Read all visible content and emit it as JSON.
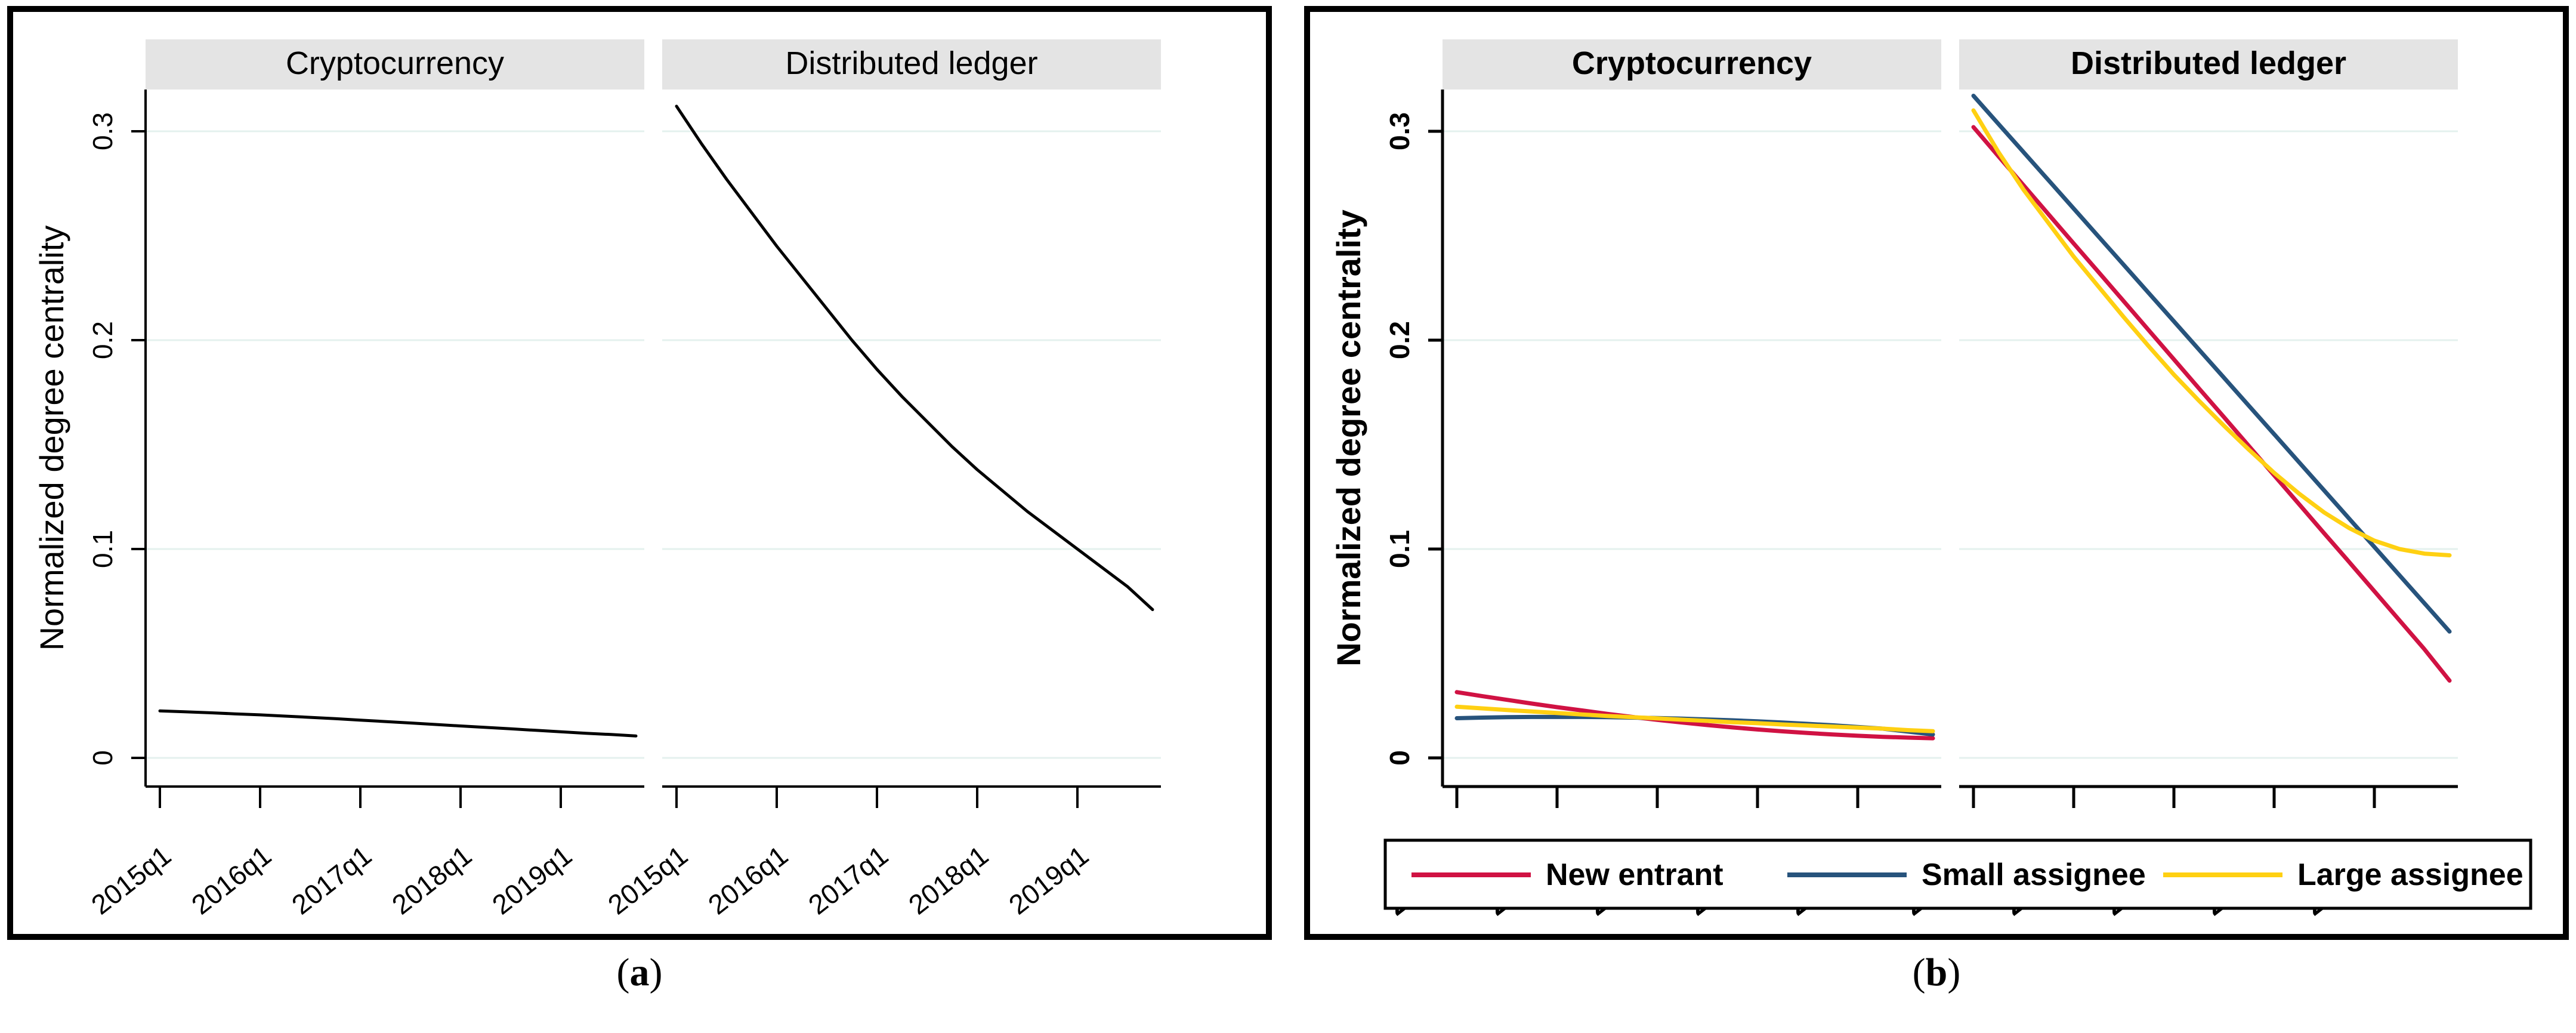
{
  "style": {
    "background": "#ffffff",
    "border_color": "#000000",
    "axis_color": "#000000",
    "grid_color": "#e4f1ee",
    "header_bg": "#e4e4e4",
    "legend_border": "#000000"
  },
  "captions": [
    {
      "open": "(",
      "letter": "a",
      "close": ")"
    },
    {
      "open": "(",
      "letter": "b",
      "close": ")"
    }
  ],
  "chart_data": [
    {
      "panel": "a",
      "type": "line",
      "ylabel": "Normalized degree centrality",
      "ytick_labels": [
        "0",
        "0.1",
        "0.2",
        "0.3"
      ],
      "ytick_values": [
        0,
        0.1,
        0.2,
        0.3
      ],
      "ylim": [
        0,
        0.32
      ],
      "x_tick_labels": [
        "2015q1",
        "2016q1",
        "2017q1",
        "2018q1",
        "2019q1"
      ],
      "x_range": [
        "2015q1",
        "2019q4"
      ],
      "grid": true,
      "legend": null,
      "line_width": 5,
      "bold_text": false,
      "subcharts": [
        {
          "title": "Cryptocurrency",
          "series": [
            {
              "name": "",
              "color": "#000000",
              "values": [
                0.0225,
                0.0221,
                0.0216,
                0.0211,
                0.0206,
                0.02,
                0.0194,
                0.0188,
                0.0181,
                0.0174,
                0.0167,
                0.016,
                0.0153,
                0.0146,
                0.0139,
                0.0132,
                0.0125,
                0.0118,
                0.0112,
                0.0105
              ]
            }
          ]
        },
        {
          "title": "Distributed ledger",
          "series": [
            {
              "name": "",
              "color": "#000000",
              "values": [
                0.312,
                0.294,
                0.277,
                0.261,
                0.245,
                0.23,
                0.215,
                0.2,
                0.186,
                0.173,
                0.161,
                0.149,
                0.138,
                0.128,
                0.118,
                0.109,
                0.1,
                0.091,
                0.082,
                0.071
              ]
            }
          ]
        }
      ]
    },
    {
      "panel": "b",
      "type": "line",
      "ylabel": "Normalized degree centrality",
      "ytick_labels": [
        "0",
        "0.1",
        "0.2",
        "0.3"
      ],
      "ytick_values": [
        0,
        0.1,
        0.2,
        0.3
      ],
      "ylim": [
        0,
        0.32
      ],
      "x_tick_labels": [
        "2015q1",
        "2016q1",
        "2017q1",
        "2018q1",
        "2019q1"
      ],
      "x_range": [
        "2015q1",
        "2019q4"
      ],
      "grid": true,
      "legend": [
        {
          "label": "New entrant",
          "color": "#d01243"
        },
        {
          "label": "Small assignee",
          "color": "#27537c"
        },
        {
          "label": "Large assignee",
          "color": "#ffd012"
        }
      ],
      "line_width": 7,
      "bold_text": true,
      "subcharts": [
        {
          "title": "Cryptocurrency",
          "series": [
            {
              "name": "New entrant",
              "color": "#d01243",
              "values": [
                0.0315,
                0.0296,
                0.0278,
                0.026,
                0.0243,
                0.0227,
                0.0211,
                0.0196,
                0.0182,
                0.0169,
                0.0157,
                0.0146,
                0.0136,
                0.0127,
                0.0119,
                0.0112,
                0.0106,
                0.0101,
                0.0097,
                0.0094
              ]
            },
            {
              "name": "Small assignee",
              "color": "#27537c",
              "values": [
                0.019,
                0.0193,
                0.0195,
                0.0196,
                0.0196,
                0.0196,
                0.0195,
                0.0193,
                0.0191,
                0.0188,
                0.0184,
                0.018,
                0.0175,
                0.0169,
                0.0163,
                0.0156,
                0.0148,
                0.014,
                0.0126,
                0.0112
              ]
            },
            {
              "name": "Large assignee",
              "color": "#ffd012",
              "values": [
                0.0245,
                0.0237,
                0.0229,
                0.0222,
                0.0215,
                0.0208,
                0.0201,
                0.0195,
                0.0189,
                0.0183,
                0.0177,
                0.0171,
                0.0166,
                0.016,
                0.0155,
                0.015,
                0.0145,
                0.014,
                0.0133,
                0.0128
              ]
            }
          ]
        },
        {
          "title": "Distributed ledger",
          "series": [
            {
              "name": "New entrant",
              "color": "#d01243",
              "values": [
                0.302,
                0.288,
                0.2741,
                0.2602,
                0.2463,
                0.2325,
                0.2186,
                0.2047,
                0.1908,
                0.1769,
                0.1631,
                0.1492,
                0.1353,
                0.1214,
                0.1075,
                0.0937,
                0.0798,
                0.0659,
                0.052,
                0.037
              ]
            },
            {
              "name": "Small assignee",
              "color": "#27537c",
              "values": [
                0.317,
                0.3035,
                0.29,
                0.2765,
                0.263,
                0.2495,
                0.236,
                0.2225,
                0.209,
                0.1955,
                0.182,
                0.1685,
                0.155,
                0.1415,
                0.128,
                0.1145,
                0.101,
                0.0875,
                0.074,
                0.0605
              ]
            },
            {
              "name": "Large assignee",
              "color": "#ffd012",
              "values": [
                0.31,
                0.29,
                0.272,
                0.256,
                0.24,
                0.2255,
                0.211,
                0.197,
                0.1835,
                0.171,
                0.159,
                0.1475,
                0.1365,
                0.1265,
                0.1175,
                0.11,
                0.104,
                0.1,
                0.0978,
                0.097
              ]
            }
          ]
        }
      ]
    }
  ]
}
